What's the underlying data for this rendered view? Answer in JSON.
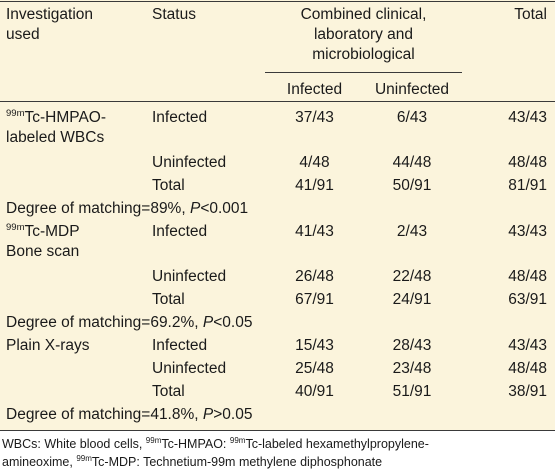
{
  "header": {
    "investigation": [
      "Investigation",
      "used"
    ],
    "status": "Status",
    "combined": [
      "Combined clinical,",
      "laboratory and",
      "microbiological"
    ],
    "total": "Total",
    "infected": "Infected",
    "uninfected": "Uninfected"
  },
  "groups": [
    {
      "sup": "99m",
      "name_line1": "Tc-HMPAO-",
      "name_line2": "labeled WBCs",
      "rows": [
        {
          "status": "Infected",
          "infected": "37/43",
          "uninfected": "6/43",
          "total": "43/43"
        },
        {
          "status": "Uninfected",
          "infected": "4/48",
          "uninfected": "44/48",
          "total": "48/48"
        },
        {
          "status": "Total",
          "infected": "41/91",
          "uninfected": "50/91",
          "total": "81/91"
        }
      ],
      "matching_prefix": "Degree of matching=89%, ",
      "p_label": "P",
      "p_value": "<0.001"
    },
    {
      "sup": "99m",
      "name_line1": "Tc-MDP",
      "name_line2": "Bone scan",
      "rows": [
        {
          "status": "Infected",
          "infected": "41/43",
          "uninfected": "2/43",
          "total": "43/43"
        },
        {
          "status": "Uninfected",
          "infected": "26/48",
          "uninfected": "22/48",
          "total": "48/48"
        },
        {
          "status": "Total",
          "infected": "67/91",
          "uninfected": "24/91",
          "total": "63/91"
        }
      ],
      "matching_prefix": "Degree of matching=69.2%, ",
      "p_label": "P",
      "p_value": "<0.05"
    },
    {
      "name_line1": "Plain X-rays",
      "rows": [
        {
          "status": "Infected",
          "infected": "15/43",
          "uninfected": "28/43",
          "total": "43/43"
        },
        {
          "status": "Uninfected",
          "infected": "25/48",
          "uninfected": "23/48",
          "total": "48/48"
        },
        {
          "status": "Total",
          "infected": "40/91",
          "uninfected": "51/91",
          "total": "38/91"
        }
      ],
      "matching_prefix": "Degree of matching=41.8%, ",
      "p_label": "P",
      "p_value": ">0.05"
    }
  ],
  "footnote": {
    "line1_a": "WBCs: White blood cells, ",
    "sup1": "99m",
    "line1_b": "Tc-HMPAO: ",
    "sup2": "99m",
    "line1_c": "Tc-labeled hexamethylpropylene-",
    "line2_a": "amineoxime, ",
    "sup3": "99m",
    "line2_b": "Tc-MDP: Technetium-99m methylene diphosphonate"
  }
}
